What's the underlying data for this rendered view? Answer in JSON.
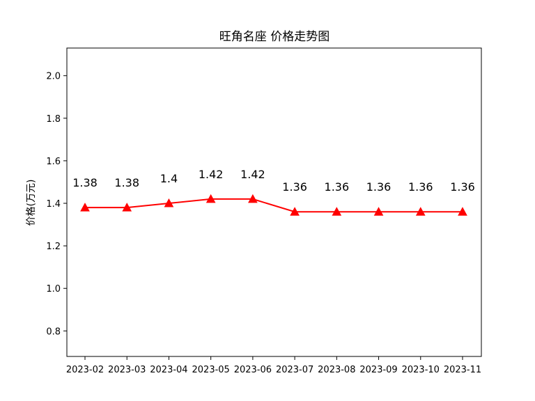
{
  "chart_data": {
    "type": "line",
    "title": "旺角名座 价格走势图",
    "xlabel": "",
    "ylabel": "价格(万元)",
    "categories": [
      "2023-02",
      "2023-03",
      "2023-04",
      "2023-05",
      "2023-06",
      "2023-07",
      "2023-08",
      "2023-09",
      "2023-10",
      "2023-11"
    ],
    "series": [
      {
        "values": [
          1.38,
          1.38,
          1.4,
          1.42,
          1.42,
          1.36,
          1.36,
          1.36,
          1.36,
          1.36
        ],
        "labels": [
          "1.38",
          "1.38",
          "1.4",
          "1.42",
          "1.42",
          "1.36",
          "1.36",
          "1.36",
          "1.36",
          "1.36"
        ],
        "color": "#ff0000",
        "marker": "triangle"
      }
    ],
    "yticks": [
      "0.8",
      "1.0",
      "1.2",
      "1.4",
      "1.6",
      "1.8",
      "2.0"
    ],
    "ylim": [
      0.68,
      2.13
    ],
    "grid": false,
    "legend": "none"
  }
}
